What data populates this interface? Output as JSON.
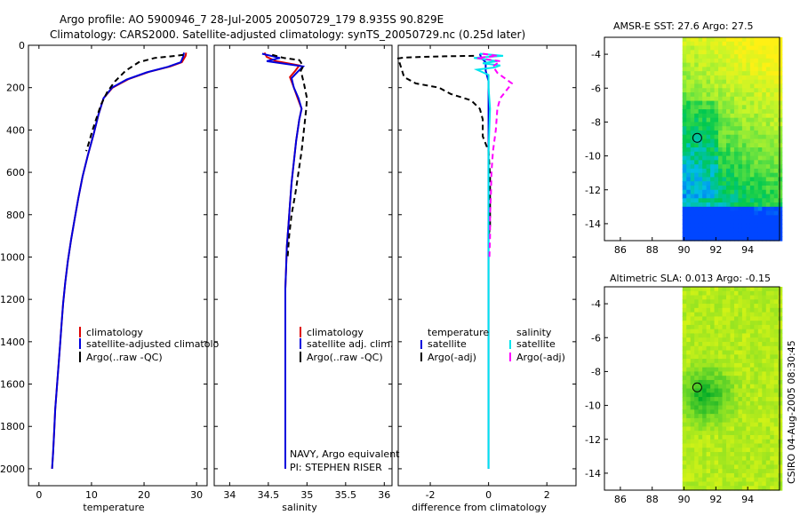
{
  "header": {
    "title_line1": "Argo profile: AO 5900946_7 28-Jul-2005 20050729_179 8.935S 90.829E",
    "title_line2": "Climatology: CARS2000. Satellite-adjusted climatology: synTS_20050729.nc (0.25d later)"
  },
  "colors": {
    "climatology": "#dd0000",
    "satellite": "#0000dd",
    "argo": "#000000",
    "sat_salinity": "#00e5ee",
    "argo_salinity": "#ff00ff"
  },
  "chart_data": [
    {
      "id": "temperature",
      "type": "line",
      "xlabel": "temperature",
      "ylabel": "",
      "xlim": [
        -2,
        32
      ],
      "ylim": [
        0,
        2080
      ],
      "y_inverted": true,
      "xticks": [
        0,
        10,
        20,
        30
      ],
      "xtick_labels": [
        "0",
        "10",
        "20",
        "30"
      ],
      "yticks": [
        0,
        200,
        400,
        600,
        800,
        1000,
        1200,
        1400,
        1600,
        1800,
        2000
      ],
      "ytick_labels": [
        "0",
        "200",
        "400",
        "600",
        "800",
        "1000",
        "1200",
        "1400",
        "1600",
        "1800",
        "2000"
      ],
      "legend": [
        "climatology",
        "satellite-adjusted climatolo",
        "Argo(..raw -QC)"
      ],
      "series": [
        {
          "name": "climatology",
          "color": "#dd0000",
          "points": [
            [
              28,
              35
            ],
            [
              27.9,
              50
            ],
            [
              27.2,
              80
            ],
            [
              25,
              100
            ],
            [
              21,
              125
            ],
            [
              17,
              160
            ],
            [
              14,
              200
            ],
            [
              12.3,
              250
            ],
            [
              11.3,
              330
            ],
            [
              10.4,
              420
            ],
            [
              9.3,
              520
            ],
            [
              8.3,
              620
            ],
            [
              7.5,
              720
            ],
            [
              6.8,
              820
            ],
            [
              6.1,
              920
            ],
            [
              5.5,
              1020
            ],
            [
              5,
              1120
            ],
            [
              4.6,
              1220
            ],
            [
              4.3,
              1320
            ],
            [
              4,
              1420
            ],
            [
              3.7,
              1520
            ],
            [
              3.4,
              1620
            ],
            [
              3.1,
              1720
            ],
            [
              2.9,
              1820
            ],
            [
              2.7,
              1920
            ],
            [
              2.5,
              2000
            ]
          ]
        },
        {
          "name": "satellite",
          "color": "#0000dd",
          "points": [
            [
              27.6,
              35
            ],
            [
              27.5,
              50
            ],
            [
              27,
              80
            ],
            [
              24.5,
              102
            ],
            [
              20.5,
              128
            ],
            [
              16.7,
              162
            ],
            [
              13.9,
              200
            ],
            [
              12.3,
              250
            ],
            [
              11.3,
              330
            ],
            [
              10.4,
              420
            ],
            [
              9.3,
              520
            ],
            [
              8.3,
              620
            ],
            [
              7.5,
              720
            ],
            [
              6.8,
              820
            ],
            [
              6.1,
              920
            ],
            [
              5.5,
              1020
            ],
            [
              5,
              1120
            ],
            [
              4.6,
              1220
            ],
            [
              4.3,
              1320
            ],
            [
              4,
              1420
            ],
            [
              3.7,
              1520
            ],
            [
              3.4,
              1620
            ],
            [
              3.1,
              1720
            ],
            [
              2.9,
              1820
            ],
            [
              2.7,
              1920
            ],
            [
              2.5,
              2000
            ]
          ]
        },
        {
          "name": "Argo",
          "color": "#000000",
          "dash": "6,4",
          "points": [
            [
              27.5,
              45
            ],
            [
              26,
              50
            ],
            [
              22,
              60
            ],
            [
              19,
              80
            ],
            [
              16.5,
              120
            ],
            [
              14.5,
              170
            ],
            [
              13,
              220
            ],
            [
              11.8,
              280
            ],
            [
              11,
              340
            ],
            [
              10.2,
              400
            ],
            [
              9.5,
              460
            ],
            [
              9,
              500
            ]
          ]
        }
      ]
    },
    {
      "id": "salinity",
      "type": "line",
      "xlabel": "salinity",
      "xlim": [
        33.8,
        36.1
      ],
      "ylim": [
        0,
        2080
      ],
      "y_inverted": true,
      "xticks": [
        34,
        34.5,
        35,
        35.5,
        36
      ],
      "xtick_labels": [
        "34",
        "34.5",
        "35",
        "35.5",
        "36"
      ],
      "legend": [
        "climatology",
        "satellite adj. clim.",
        "Argo(..raw -QC)"
      ],
      "annotation": [
        "NAVY, Argo equivalent",
        "PI: STEPHEN RISER"
      ],
      "series": [
        {
          "name": "climatology",
          "color": "#dd0000",
          "points": [
            [
              34.45,
              35
            ],
            [
              34.48,
              55
            ],
            [
              34.6,
              75
            ],
            [
              34.9,
              95
            ],
            [
              34.85,
              120
            ],
            [
              34.78,
              150
            ],
            [
              34.83,
              200
            ],
            [
              34.88,
              250
            ],
            [
              34.93,
              300
            ],
            [
              34.9,
              350
            ],
            [
              34.86,
              450
            ],
            [
              34.83,
              550
            ],
            [
              34.8,
              650
            ],
            [
              34.78,
              750
            ],
            [
              34.76,
              850
            ],
            [
              34.74,
              950
            ],
            [
              34.73,
              1050
            ],
            [
              34.72,
              1150
            ],
            [
              34.72,
              1300
            ],
            [
              34.72,
              1500
            ],
            [
              34.72,
              1700
            ],
            [
              34.72,
              1900
            ],
            [
              34.72,
              2000
            ]
          ]
        },
        {
          "name": "satellite",
          "color": "#0000dd",
          "points": [
            [
              34.42,
              40
            ],
            [
              34.65,
              60
            ],
            [
              34.48,
              75
            ],
            [
              34.95,
              100
            ],
            [
              34.88,
              125
            ],
            [
              34.8,
              155
            ],
            [
              34.83,
              200
            ],
            [
              34.89,
              250
            ],
            [
              34.93,
              300
            ],
            [
              34.9,
              350
            ],
            [
              34.86,
              450
            ],
            [
              34.83,
              550
            ],
            [
              34.8,
              650
            ],
            [
              34.78,
              750
            ],
            [
              34.76,
              850
            ],
            [
              34.74,
              950
            ],
            [
              34.73,
              1050
            ],
            [
              34.72,
              1150
            ],
            [
              34.72,
              1300
            ],
            [
              34.72,
              1500
            ],
            [
              34.72,
              1700
            ],
            [
              34.72,
              1900
            ],
            [
              34.72,
              2000
            ]
          ]
        },
        {
          "name": "Argo",
          "color": "#000000",
          "dash": "6,4",
          "points": [
            [
              34.55,
              45
            ],
            [
              34.7,
              60
            ],
            [
              34.9,
              70
            ],
            [
              34.92,
              80
            ],
            [
              34.95,
              100
            ],
            [
              34.92,
              120
            ],
            [
              34.96,
              180
            ],
            [
              35.0,
              250
            ],
            [
              34.99,
              300
            ],
            [
              34.96,
              400
            ],
            [
              34.93,
              500
            ],
            [
              34.89,
              600
            ],
            [
              34.85,
              700
            ],
            [
              34.8,
              800
            ],
            [
              34.77,
              900
            ],
            [
              34.75,
              1000
            ]
          ]
        }
      ]
    },
    {
      "id": "difference",
      "type": "line",
      "xlabel": "difference from climatology",
      "xlim": [
        -3.1,
        3.0
      ],
      "ylim": [
        0,
        2080
      ],
      "y_inverted": true,
      "xticks": [
        -2,
        0,
        2
      ],
      "xtick_labels": [
        "-2",
        "0",
        "2"
      ],
      "legend_temperature": {
        "heading": "temperature",
        "items": [
          "satellite",
          "Argo(-adj)"
        ]
      },
      "legend_salinity": {
        "heading": "salinity",
        "items": [
          "satellite",
          "Argo(-adj)"
        ]
      },
      "series": [
        {
          "name": "temperature satellite",
          "color": "#0000dd",
          "points": [
            [
              -0.3,
              40
            ],
            [
              -0.25,
              60
            ],
            [
              -0.1,
              80
            ],
            [
              -0.1,
              100
            ],
            [
              -0.1,
              120
            ],
            [
              0,
              170
            ],
            [
              0,
              250
            ],
            [
              0,
              400
            ],
            [
              0,
              600
            ],
            [
              0,
              1000
            ],
            [
              0,
              1500
            ],
            [
              0,
              2000
            ]
          ]
        },
        {
          "name": "temperature Argo(-adj)",
          "color": "#000000",
          "dash": "6,4",
          "points": [
            [
              -0.5,
              50
            ],
            [
              -1.5,
              52
            ],
            [
              -2.3,
              55
            ],
            [
              -2.9,
              58
            ],
            [
              -3.1,
              62
            ],
            [
              -2.9,
              150
            ],
            [
              -2.5,
              180
            ],
            [
              -1.7,
              200
            ],
            [
              -1.3,
              230
            ],
            [
              -0.6,
              260
            ],
            [
              -0.3,
              300
            ],
            [
              -0.2,
              350
            ],
            [
              -0.2,
              430
            ],
            [
              0,
              500
            ],
            [
              0.05,
              620
            ],
            [
              0.05,
              720
            ],
            [
              0.05,
              800
            ],
            [
              0.05,
              860
            ],
            [
              0,
              900
            ]
          ]
        },
        {
          "name": "salinity satellite",
          "color": "#00e5ee",
          "points": [
            [
              -0.3,
              40
            ],
            [
              0.5,
              50
            ],
            [
              -0.5,
              60
            ],
            [
              0.3,
              75
            ],
            [
              -0.2,
              85
            ],
            [
              0.4,
              95
            ],
            [
              0.2,
              105
            ],
            [
              -0.4,
              115
            ],
            [
              0,
              140
            ],
            [
              0,
              200
            ],
            [
              0.05,
              300
            ],
            [
              0,
              500
            ],
            [
              0,
              800
            ],
            [
              0,
              1200
            ],
            [
              0,
              1600
            ],
            [
              0,
              2000
            ]
          ]
        },
        {
          "name": "salinity Argo(-adj)",
          "color": "#ff00ff",
          "dash": "6,4",
          "points": [
            [
              -0.2,
              40
            ],
            [
              0.3,
              50
            ],
            [
              -0.4,
              60
            ],
            [
              0.4,
              75
            ],
            [
              0.15,
              100
            ],
            [
              0.3,
              130
            ],
            [
              0.8,
              180
            ],
            [
              0.4,
              250
            ],
            [
              0.3,
              300
            ],
            [
              0.25,
              400
            ],
            [
              0.15,
              500
            ],
            [
              0.1,
              600
            ],
            [
              0.08,
              700
            ],
            [
              0.05,
              800
            ],
            [
              0.05,
              900
            ],
            [
              0.03,
              1000
            ]
          ]
        }
      ]
    },
    {
      "id": "sst_map",
      "type": "heatmap",
      "title": "AMSR-E SST: 27.6 Argo: 27.5",
      "xlim": [
        85,
        96
      ],
      "ylim": [
        -15,
        -3
      ],
      "xticks": [
        86,
        88,
        90,
        92,
        94
      ],
      "xtick_labels": [
        "86",
        "88",
        "90",
        "92",
        "94"
      ],
      "yticks": [
        -4,
        -6,
        -8,
        -10,
        -12,
        -14
      ],
      "ytick_labels": [
        "-4",
        "-6",
        "-8",
        "-10",
        "-12",
        "-14"
      ],
      "data_region_lon": [
        89.9,
        96
      ],
      "marker": {
        "lon": 90.829,
        "lat": -8.935
      }
    },
    {
      "id": "sla_map",
      "type": "heatmap",
      "title": "Altimetric SLA: 0.013 Argo: -0.15",
      "xlim": [
        85,
        96
      ],
      "ylim": [
        -15,
        -3
      ],
      "xticks": [
        86,
        88,
        90,
        92,
        94
      ],
      "xtick_labels": [
        "86",
        "88",
        "90",
        "92",
        "94"
      ],
      "yticks": [
        -4,
        -6,
        -8,
        -10,
        -12,
        -14
      ],
      "ytick_labels": [
        "-4",
        "-6",
        "-8",
        "-10",
        "-12",
        "-14"
      ],
      "data_region_lon": [
        89.9,
        96
      ],
      "marker": {
        "lon": 90.829,
        "lat": -8.935
      }
    }
  ],
  "footer": {
    "credit": "CSIRO 04-Aug-2005 08:30:45"
  }
}
